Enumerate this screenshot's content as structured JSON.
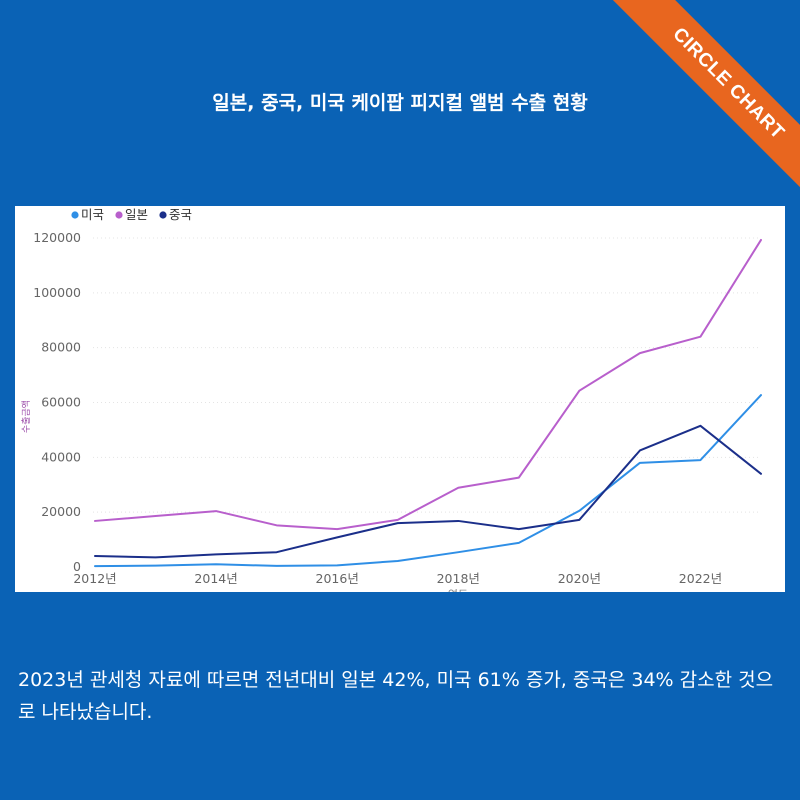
{
  "brand": {
    "label": "CIRCLE CHART",
    "color": "#e8661f"
  },
  "title": "일본, 중국, 미국  케이팝 피지컬 앨범 수출 현황",
  "caption": "2023년 관세청 자료에 따르면  전년대비 일본 42%, 미국 61% 증가, 중국은 34% 감소한 것으로 나타났습니다.",
  "colors": {
    "background": "#0a62b5",
    "panel": "#ffffff"
  },
  "chart_data": {
    "type": "line",
    "title": "",
    "xlabel": "연도",
    "ylabel": "수출금액",
    "x": [
      2012,
      2013,
      2014,
      2015,
      2016,
      2017,
      2018,
      2019,
      2020,
      2021,
      2022,
      2023
    ],
    "xlim": [
      2012,
      2023
    ],
    "ylim": [
      0,
      120000
    ],
    "xticks": [
      {
        "value": 2012,
        "label": "2012년"
      },
      {
        "value": 2014,
        "label": "2014년"
      },
      {
        "value": 2016,
        "label": "2016년"
      },
      {
        "value": 2018,
        "label": "2018년"
      },
      {
        "value": 2020,
        "label": "2020년"
      },
      {
        "value": 2022,
        "label": "2022년"
      }
    ],
    "yticks": [
      {
        "value": 0,
        "label": "0"
      },
      {
        "value": 20000,
        "label": "20000"
      },
      {
        "value": 40000,
        "label": "40000"
      },
      {
        "value": 60000,
        "label": "60000"
      },
      {
        "value": 80000,
        "label": "80000"
      },
      {
        "value": 100000,
        "label": "100000"
      },
      {
        "value": 120000,
        "label": "120000"
      }
    ],
    "legend_position": "top-left",
    "grid": true,
    "series": [
      {
        "name": "미국",
        "color": "#2f8fe6",
        "values": [
          300,
          500,
          1000,
          400,
          600,
          2200,
          5400,
          8800,
          20500,
          38000,
          39000,
          62700
        ]
      },
      {
        "name": "일본",
        "color": "#b85fcc",
        "values": [
          16800,
          18600,
          20400,
          15200,
          13800,
          17200,
          28900,
          32600,
          64300,
          78000,
          84000,
          119300
        ]
      },
      {
        "name": "중국",
        "color": "#1b2f8a",
        "values": [
          4000,
          3500,
          4600,
          5400,
          10800,
          16000,
          16800,
          13800,
          17200,
          42500,
          51500,
          34000
        ]
      }
    ]
  }
}
